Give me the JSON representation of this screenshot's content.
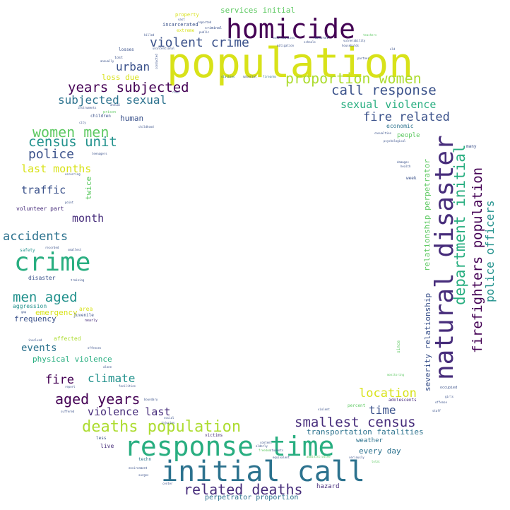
{
  "palette": {
    "purple": "#440154",
    "indigo": "#472d7b",
    "blue": "#3b528b",
    "steel": "#2c728e",
    "teal": "#21918c",
    "sea": "#28ae80",
    "green": "#5ec962",
    "lime": "#addc30",
    "yellow": "#d8e219"
  },
  "words": [
    {
      "text": "population",
      "color": "#d8e219"
    },
    {
      "text": "homicide",
      "color": "#440154"
    },
    {
      "text": "natural disaster",
      "color": "#472d7b"
    },
    {
      "text": "response time",
      "color": "#28ae80"
    },
    {
      "text": "initial call",
      "color": "#2c728e"
    },
    {
      "text": "crime",
      "color": "#28ae80"
    },
    {
      "text": "deaths population",
      "color": "#addc30"
    },
    {
      "text": "department initial",
      "color": "#28ae80"
    },
    {
      "text": "firefighters population",
      "color": "#440154"
    },
    {
      "text": "proportion women",
      "color": "#addc30"
    },
    {
      "text": "violent crime",
      "color": "#3b528b"
    },
    {
      "text": "years subjected",
      "color": "#440154"
    },
    {
      "text": "call response",
      "color": "#3b528b"
    },
    {
      "text": "women men",
      "color": "#5ec962"
    },
    {
      "text": "census unit",
      "color": "#21918c"
    },
    {
      "text": "police officers",
      "color": "#21918c"
    },
    {
      "text": "related deaths",
      "color": "#472d7b"
    },
    {
      "text": "smallest census",
      "color": "#472d7b"
    },
    {
      "text": "aged years",
      "color": "#440154"
    },
    {
      "text": "men aged",
      "color": "#21918c"
    },
    {
      "text": "fire related",
      "color": "#3b528b"
    },
    {
      "text": "sexual violence",
      "color": "#28ae80"
    },
    {
      "text": "subjected sexual",
      "color": "#2c728e"
    },
    {
      "text": "police",
      "color": "#3b528b"
    },
    {
      "text": "urban",
      "color": "#3b528b"
    },
    {
      "text": "last months",
      "color": "#d8e219"
    },
    {
      "text": "accidents",
      "color": "#2c728e"
    },
    {
      "text": "violence last",
      "color": "#472d7b"
    },
    {
      "text": "location",
      "color": "#d8e219"
    },
    {
      "text": "climate",
      "color": "#21918c"
    },
    {
      "text": "fire",
      "color": "#440154"
    },
    {
      "text": "time",
      "color": "#3b528b"
    },
    {
      "text": "traffic",
      "color": "#3b528b"
    },
    {
      "text": "month",
      "color": "#472d7b"
    },
    {
      "text": "events",
      "color": "#2c728e"
    },
    {
      "text": "relationship perpetrator",
      "color": "#5ec962"
    },
    {
      "text": "severity relationship",
      "color": "#3b528b"
    },
    {
      "text": "twice",
      "color": "#5ec962"
    },
    {
      "text": "transportation fatalities",
      "color": "#2c728e"
    },
    {
      "text": "perpetrator proportion",
      "color": "#2c728e"
    },
    {
      "text": "physical violence",
      "color": "#28ae80"
    },
    {
      "text": "services initial",
      "color": "#5ec962"
    },
    {
      "text": "human",
      "color": "#3b528b"
    },
    {
      "text": "every day",
      "color": "#2c728e"
    },
    {
      "text": "frequency",
      "color": "#3b528b"
    },
    {
      "text": "emergency",
      "color": "#d8e219"
    },
    {
      "text": "loss due",
      "color": "#d8e219"
    },
    {
      "text": "weather",
      "color": "#2c728e"
    },
    {
      "text": "hazard",
      "color": "#472d7b"
    },
    {
      "text": "people",
      "color": "#5ec962"
    },
    {
      "text": "economic",
      "color": "#2c728e"
    },
    {
      "text": "volunteer part",
      "color": "#472d7b"
    },
    {
      "text": "affected",
      "color": "#addc30"
    },
    {
      "text": "area",
      "color": "#d8e219"
    },
    {
      "text": "aggression",
      "color": "#21918c"
    },
    {
      "text": "disaster",
      "color": "#3b528b"
    },
    {
      "text": "incarcerated",
      "color": "#3b528b"
    },
    {
      "text": "property",
      "color": "#d8e219"
    },
    {
      "text": "extreme",
      "color": "#d8e219"
    },
    {
      "text": "live",
      "color": "#472d7b"
    },
    {
      "text": "week",
      "color": "#3b528b"
    },
    {
      "text": "adolescents",
      "color": "#472d7b"
    },
    {
      "text": "percent",
      "color": "#5ec962"
    },
    {
      "text": "since",
      "color": "#5ec962"
    },
    {
      "text": "children",
      "color": "#3b528b"
    },
    {
      "text": "losses",
      "color": "#3b528b"
    },
    {
      "text": "lost",
      "color": "#3b528b"
    },
    {
      "text": "victims",
      "color": "#472d7b"
    },
    {
      "text": "techn",
      "color": "#2c728e"
    },
    {
      "text": "less",
      "color": "#3b528b"
    },
    {
      "text": "nearly",
      "color": "#472d7b"
    },
    {
      "text": "juvenile",
      "color": "#3b528b"
    },
    {
      "text": "criminal",
      "color": "#3b528b"
    },
    {
      "text": "many",
      "color": "#3b528b"
    },
    {
      "text": "safety",
      "color": "#21918c"
    },
    {
      "text": "training",
      "color": "#3b528b"
    },
    {
      "text": "stations",
      "color": "#2c728e"
    },
    {
      "text": "firearms",
      "color": "#2c728e"
    },
    {
      "text": "psychological",
      "color": "#3b528b"
    },
    {
      "text": "health",
      "color": "#3b528b"
    },
    {
      "text": "point",
      "color": "#3b528b"
    },
    {
      "text": "occurring",
      "color": "#3b528b"
    },
    {
      "text": "teenagers",
      "color": "#3b528b"
    },
    {
      "text": "prison",
      "color": "#5ec962"
    },
    {
      "text": "annual",
      "color": "#3b528b"
    },
    {
      "text": "instruments",
      "color": "#3b528b"
    },
    {
      "text": "city",
      "color": "#3b528b"
    },
    {
      "text": "childhood",
      "color": "#3b528b"
    },
    {
      "text": "mitigation",
      "color": "#3b528b"
    },
    {
      "text": "natural",
      "color": "#3b528b"
    },
    {
      "text": "households",
      "color": "#3b528b"
    },
    {
      "text": "vulnerability",
      "color": "#3b528b"
    },
    {
      "text": "teachers",
      "color": "#5ec962"
    },
    {
      "text": "old",
      "color": "#3b528b"
    },
    {
      "text": "schools",
      "color": "#3b528b"
    },
    {
      "text": "occupied",
      "color": "#3b528b"
    },
    {
      "text": "girls",
      "color": "#3b528b"
    },
    {
      "text": "offense",
      "color": "#3b528b"
    },
    {
      "text": "staff",
      "color": "#3b528b"
    },
    {
      "text": "suffered",
      "color": "#3b528b"
    },
    {
      "text": "boundary",
      "color": "#3b528b"
    },
    {
      "text": "injuries",
      "color": "#3b528b"
    },
    {
      "text": "social",
      "color": "#3b528b"
    },
    {
      "text": "report",
      "color": "#3b528b"
    },
    {
      "text": "facilities",
      "color": "#3b528b"
    },
    {
      "text": "recorded",
      "color": "#3b528b"
    },
    {
      "text": "smallest",
      "color": "#3b528b"
    },
    {
      "text": "gap",
      "color": "#3b528b"
    },
    {
      "text": "involved",
      "color": "#3b528b"
    },
    {
      "text": "offences",
      "color": "#3b528b"
    },
    {
      "text": "alone",
      "color": "#3b528b"
    },
    {
      "text": "monitoring",
      "color": "#5ec962"
    },
    {
      "text": "elderly",
      "color": "#3b528b"
    },
    {
      "text": "content",
      "color": "#3b528b"
    },
    {
      "text": "students",
      "color": "#3b528b"
    },
    {
      "text": "equivalent",
      "color": "#3b528b"
    },
    {
      "text": "administrative",
      "color": "#5ec962"
    },
    {
      "text": "seriously",
      "color": "#3b528b"
    },
    {
      "text": "total",
      "color": "#5ec962"
    },
    {
      "text": "violent",
      "color": "#3b528b"
    },
    {
      "text": "freedom",
      "color": "#5ec962"
    },
    {
      "text": "environment",
      "color": "#3b528b"
    },
    {
      "text": "surges",
      "color": "#3b528b"
    },
    {
      "text": "center",
      "color": "#3b528b"
    },
    {
      "text": "road",
      "color": "#3b528b"
    },
    {
      "text": "killed",
      "color": "#3b528b"
    },
    {
      "text": "public",
      "color": "#3b528b"
    },
    {
      "text": "reported",
      "color": "#3b528b"
    },
    {
      "text": "notifications",
      "color": "#3b528b"
    },
    {
      "text": "vast",
      "color": "#3b528b"
    },
    {
      "text": "partner",
      "color": "#3b528b"
    },
    {
      "text": "material",
      "color": "#3b528b"
    },
    {
      "text": "damages",
      "color": "#3b528b"
    },
    {
      "text": "casualties",
      "color": "#3b528b"
    },
    {
      "text": "conducted",
      "color": "#3b528b"
    },
    {
      "text": "annually",
      "color": "#3b528b"
    },
    {
      "text": "unintentional",
      "color": "#3b528b"
    }
  ]
}
